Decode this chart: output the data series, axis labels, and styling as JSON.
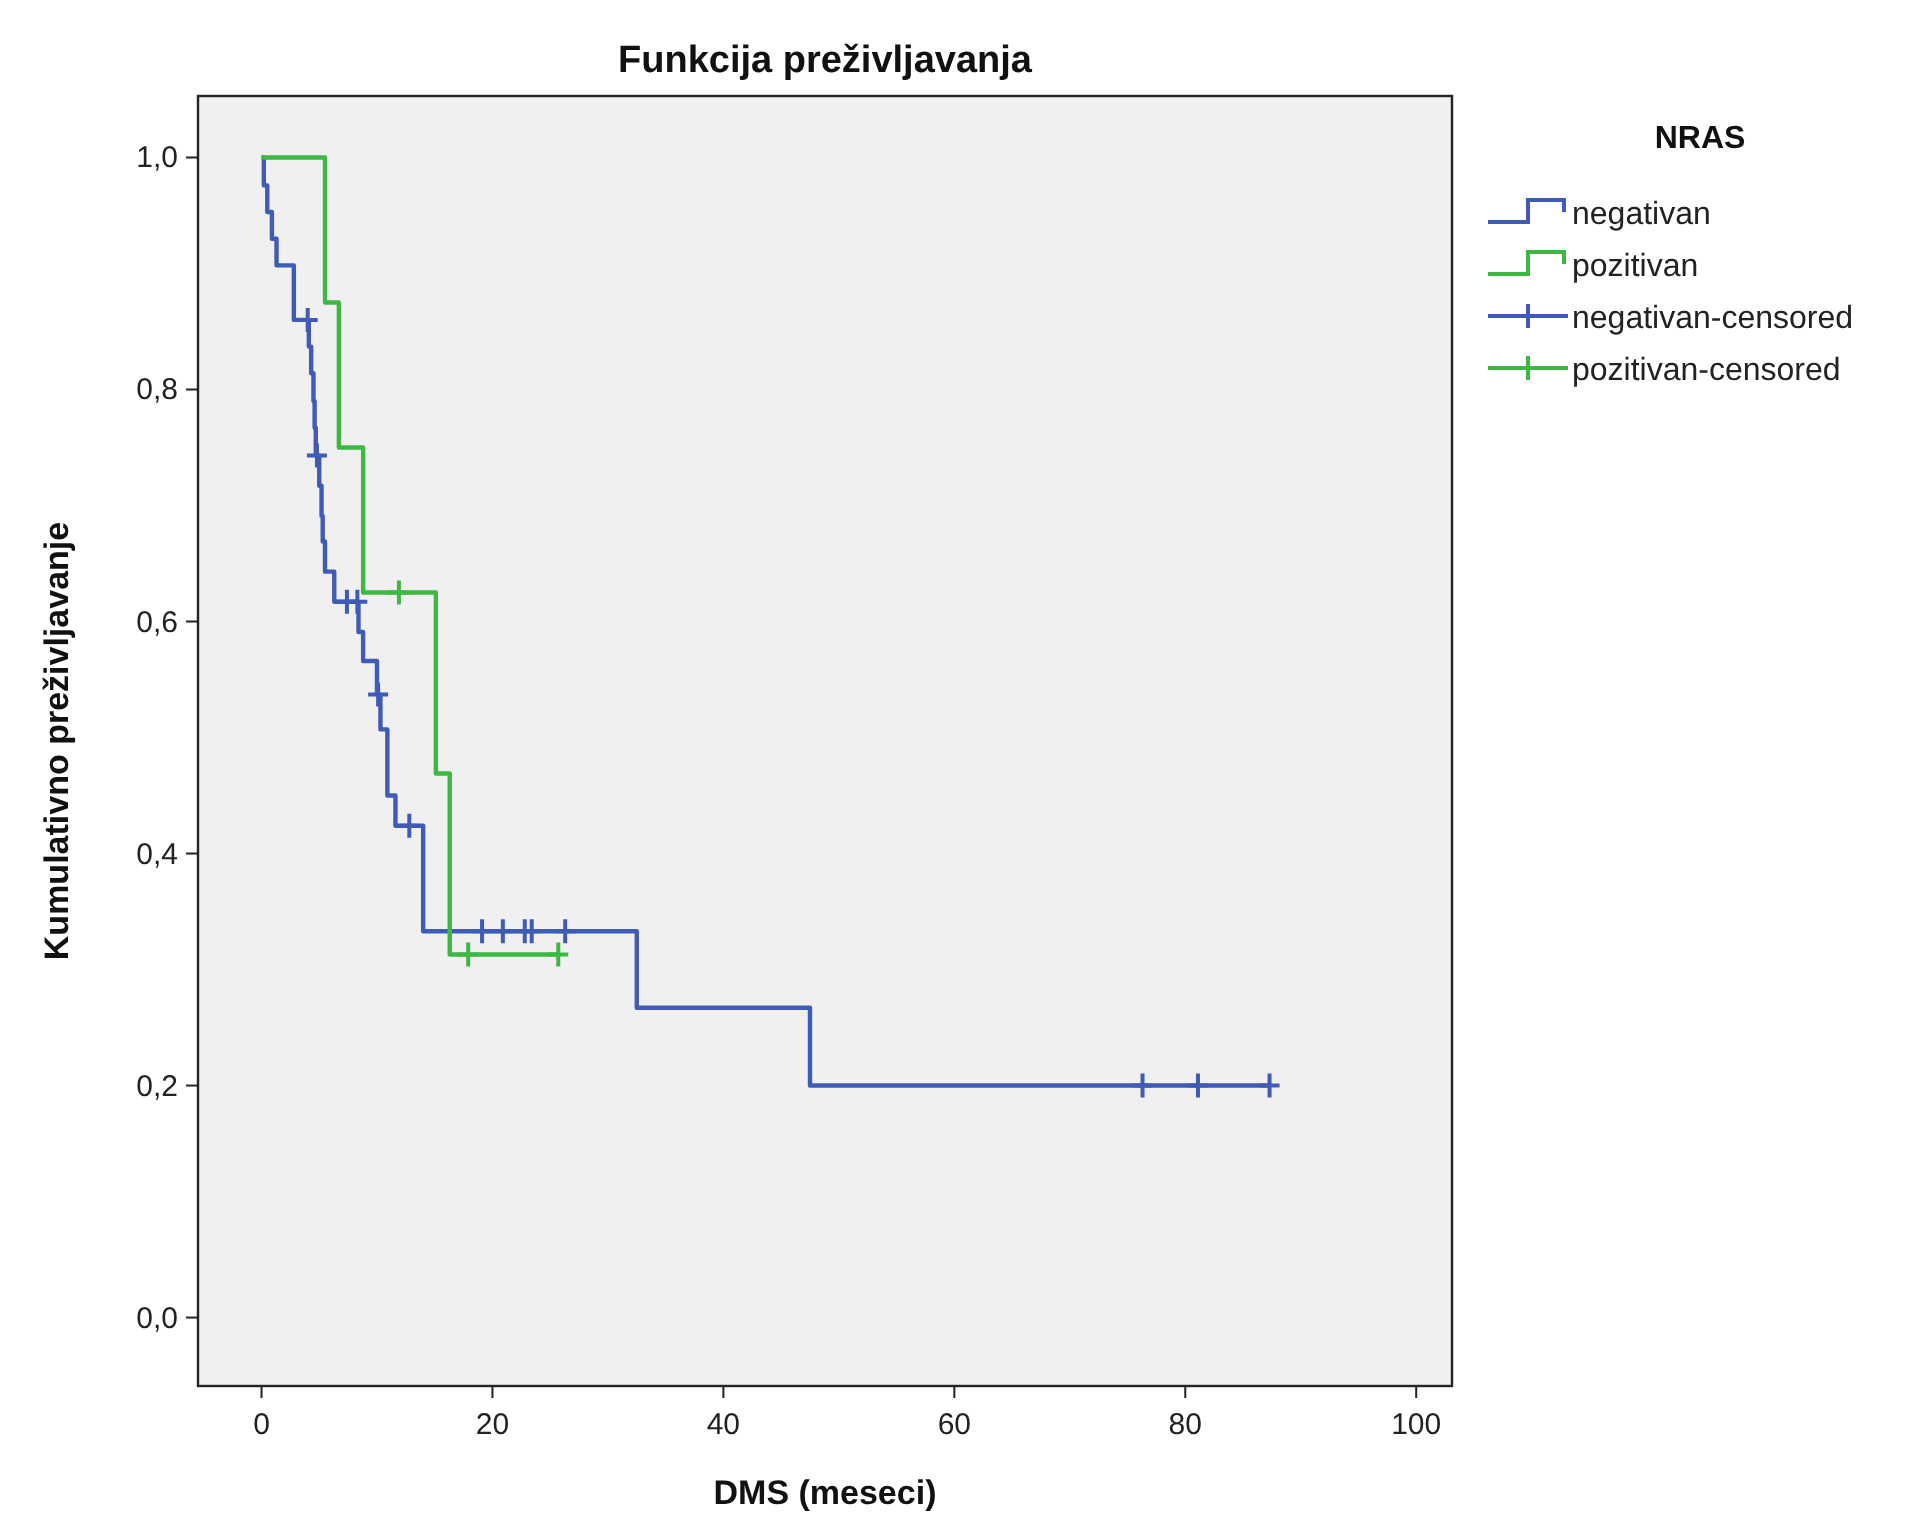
{
  "chart_data": {
    "type": "step",
    "title": "Funkcija preživljavanja",
    "xlabel": "DMS (meseci)",
    "ylabel": "Kumulativno preživljavanje",
    "legend_title": "NRAS",
    "legend": "top right",
    "grid": false,
    "xlim": [
      -5.5,
      103.1
    ],
    "xticks": [
      0,
      20,
      40,
      60,
      80,
      100
    ],
    "ylim": [
      -0.059,
      1.053
    ],
    "yticks": [
      {
        "value": 0,
        "label": "0,0"
      },
      {
        "value": 0.2,
        "label": "0,2"
      },
      {
        "value": 0.4,
        "label": "0,4"
      },
      {
        "value": 0.6,
        "label": "0,6"
      },
      {
        "value": 0.8,
        "label": "0,8"
      },
      {
        "value": 1,
        "label": "1,0"
      }
    ],
    "series": [
      {
        "name": "negativan",
        "color": "#3f5bb5",
        "x": [
          0,
          0.2,
          0.5,
          0.9,
          1.3,
          2.8,
          4.1,
          4.3,
          4.5,
          4.6,
          4.7,
          5.0,
          5.2,
          5.3,
          5.5,
          6.3,
          8.4,
          8.8,
          10.0,
          10.3,
          10.9,
          11.6,
          14.0,
          32.5,
          47.5,
          87.3
        ],
        "values": [
          1,
          0.976,
          0.953,
          0.93,
          0.907,
          0.86,
          0.837,
          0.814,
          0.79,
          0.767,
          0.743,
          0.717,
          0.691,
          0.669,
          0.643,
          0.617,
          0.591,
          0.566,
          0.537,
          0.507,
          0.45,
          0.424,
          0.333,
          0.267,
          0.2,
          0.2
        ]
      },
      {
        "name": "pozitivan",
        "color": "#3cb843",
        "x": [
          0,
          5.5,
          6.7,
          8.8,
          15.1,
          16.3,
          25.7
        ],
        "values": [
          1,
          0.875,
          0.75,
          0.625,
          0.469,
          0.313,
          0.313
        ]
      },
      {
        "name": "negativan-censored",
        "color": "#3f5bb5",
        "type": "scatter",
        "marker": "cross",
        "x": [
          4.0,
          4.8,
          7.4,
          8.3,
          10.1,
          12.8,
          19.1,
          20.9,
          22.8,
          23.4,
          26.3,
          76.3,
          81.1,
          87.3
        ],
        "values": [
          0.86,
          0.743,
          0.617,
          0.617,
          0.537,
          0.424,
          0.333,
          0.333,
          0.333,
          0.333,
          0.333,
          0.2,
          0.2,
          0.2
        ]
      },
      {
        "name": "pozitivan-censored",
        "color": "#3cb843",
        "type": "scatter",
        "marker": "cross",
        "x": [
          11.9,
          17.9,
          25.7
        ],
        "values": [
          0.625,
          0.313,
          0.313
        ]
      }
    ]
  }
}
